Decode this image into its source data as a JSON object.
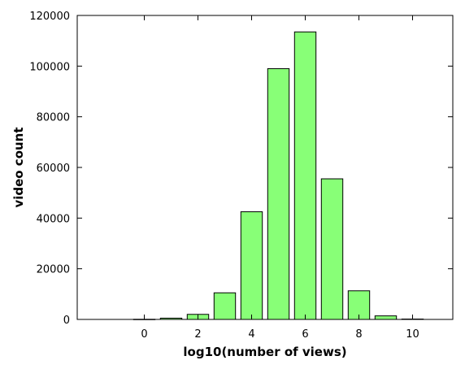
{
  "chart_data": {
    "type": "bar",
    "title": "",
    "xlabel": "log10(number of views)",
    "ylabel": "video count",
    "xlim": [
      -2.5,
      11.5
    ],
    "ylim": [
      0,
      120000
    ],
    "x_ticks": [
      0,
      2,
      4,
      6,
      8,
      10
    ],
    "y_ticks": [
      0,
      20000,
      40000,
      60000,
      80000,
      100000,
      120000
    ],
    "bar_width": 0.8,
    "bar_color": "#88ff77",
    "bar_edge_color": "#000000",
    "grid": false,
    "bars": [
      {
        "x": 0,
        "value": 60
      },
      {
        "x": 1,
        "value": 500
      },
      {
        "x": 2,
        "value": 2000
      },
      {
        "x": 3,
        "value": 10500
      },
      {
        "x": 4,
        "value": 42500
      },
      {
        "x": 5,
        "value": 99000
      },
      {
        "x": 6,
        "value": 113500
      },
      {
        "x": 7,
        "value": 55500
      },
      {
        "x": 8,
        "value": 11300
      },
      {
        "x": 9,
        "value": 1400
      },
      {
        "x": 10,
        "value": 150
      }
    ]
  }
}
